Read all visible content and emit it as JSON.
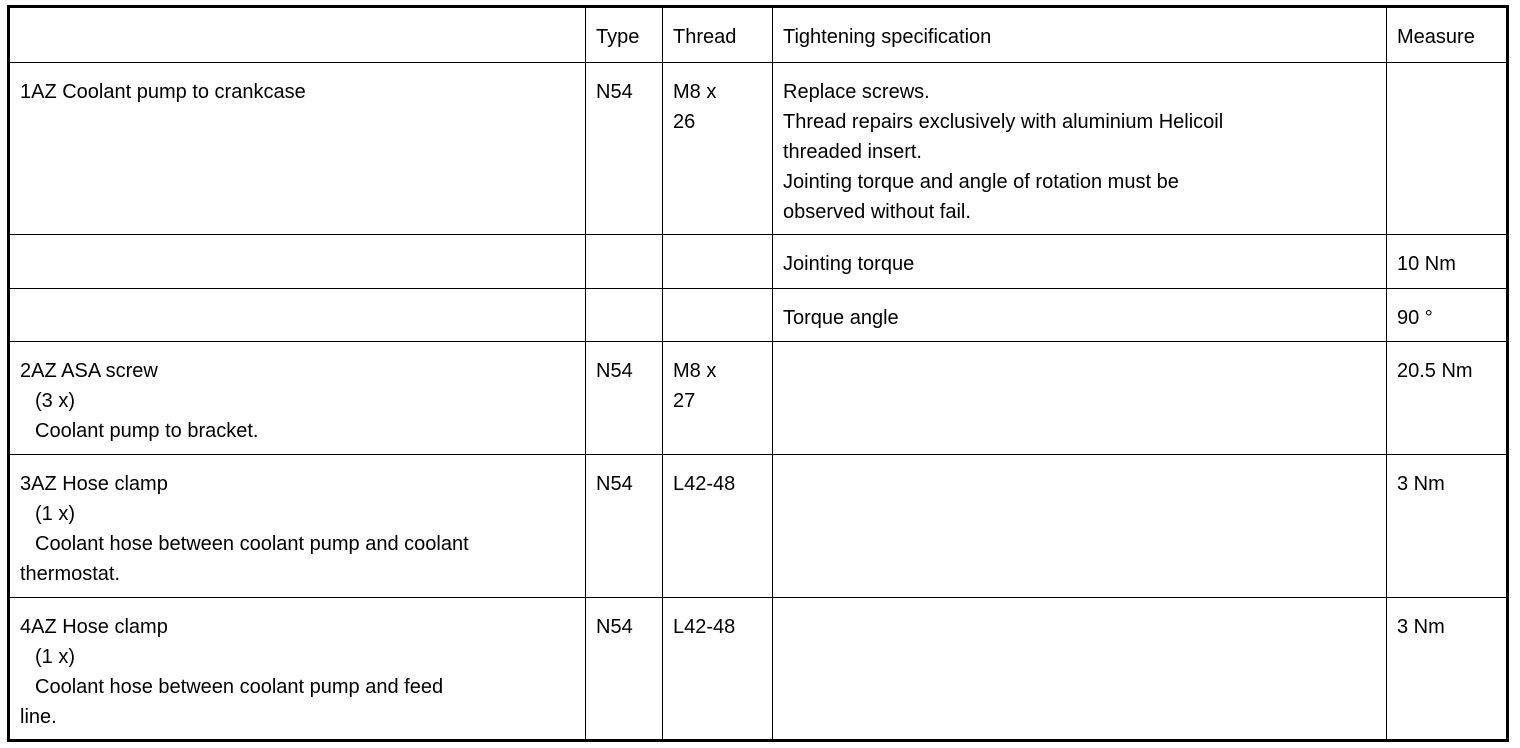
{
  "table": {
    "header": [
      [],
      [
        "Type"
      ],
      [
        "Thread"
      ],
      [
        "Tightening specification"
      ],
      [
        "Measure"
      ]
    ],
    "rows": [
      [
        [
          "1AZ  Coolant pump to crankcase"
        ],
        [
          "N54"
        ],
        [
          "M8 x",
          "26"
        ],
        [
          "Replace screws.",
          "Thread repairs exclusively with aluminium Helicoil",
          "threaded insert.",
          "Jointing torque and angle of rotation must be",
          "observed without fail."
        ],
        []
      ],
      [
        [],
        [],
        [],
        [
          "Jointing torque"
        ],
        [
          "10 Nm"
        ]
      ],
      [
        [],
        [],
        [],
        [
          "Torque angle"
        ],
        [
          "90 °"
        ]
      ],
      [
        [
          "2AZ  ASA screw",
          "(3 x)",
          "Coolant pump to bracket."
        ],
        [
          "N54"
        ],
        [
          "M8 x",
          "27"
        ],
        [],
        [
          "20.5 Nm"
        ]
      ],
      [
        [
          "3AZ  Hose clamp",
          "(1 x)",
          "Coolant hose between coolant pump and coolant",
          "thermostat."
        ],
        [
          "N54"
        ],
        [
          "L42-48"
        ],
        [],
        [
          "3 Nm"
        ]
      ],
      [
        [
          "4AZ  Hose clamp",
          "(1 x)",
          "Coolant hose between coolant pump and feed",
          "line."
        ],
        [
          "N54"
        ],
        [
          "L42-48"
        ],
        [],
        [
          "3 Nm"
        ]
      ]
    ]
  }
}
